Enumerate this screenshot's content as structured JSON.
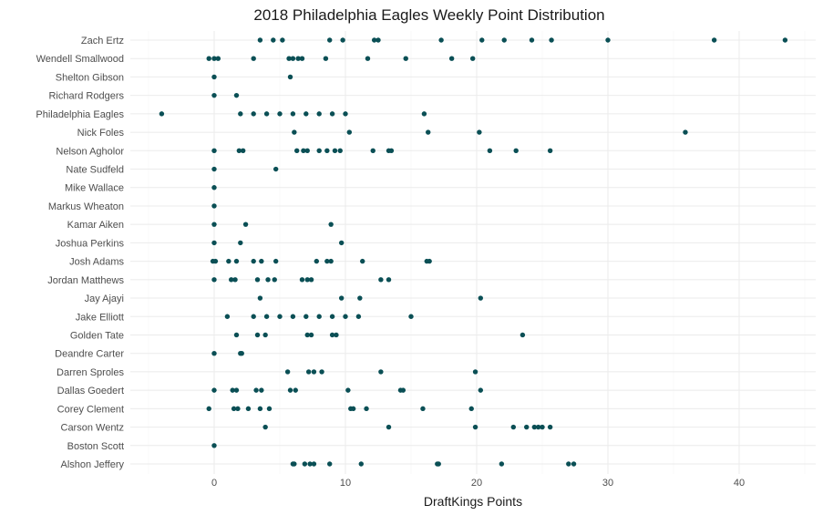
{
  "chart_data": {
    "type": "scatter",
    "title": "2018 Philadelphia Eagles Weekly Point Distribution",
    "xlabel": "DraftKings Points",
    "ylabel": "",
    "xlim": [
      -5,
      45
    ],
    "xticks": [
      0,
      10,
      20,
      30,
      40
    ],
    "grid": true,
    "legend": "none",
    "point_color": "#0a4f55",
    "categories": [
      "Zach Ertz",
      "Wendell Smallwood",
      "Shelton Gibson",
      "Richard Rodgers",
      "Philadelphia Eagles",
      "Nick Foles",
      "Nelson Agholor",
      "Nate Sudfeld",
      "Mike Wallace",
      "Markus Wheaton",
      "Kamar Aiken",
      "Joshua Perkins",
      "Josh Adams",
      "Jordan Matthews",
      "Jay Ajayi",
      "Jake Elliott",
      "Golden Tate",
      "Deandre Carter",
      "Darren Sproles",
      "Dallas Goedert",
      "Corey Clement",
      "Carson Wentz",
      "Boston Scott",
      "Alshon Jeffery"
    ],
    "points": {
      "Zach Ertz": [
        3.5,
        4.5,
        5.2,
        8.8,
        9.8,
        12.2,
        12.5,
        17.3,
        20.4,
        22.1,
        24.2,
        25.7,
        30.0,
        38.1,
        43.5
      ],
      "Wendell Smallwood": [
        -0.4,
        0.0,
        0.3,
        3.0,
        5.7,
        6.0,
        6.4,
        6.7,
        8.5,
        11.7,
        14.6,
        18.1,
        19.7
      ],
      "Shelton Gibson": [
        0.0,
        5.8
      ],
      "Richard Rodgers": [
        0.0,
        1.7
      ],
      "Philadelphia Eagles": [
        -4.0,
        2.0,
        3.0,
        4.0,
        5.0,
        6.0,
        7.0,
        8.0,
        9.0,
        10.0,
        16.0
      ],
      "Nick Foles": [
        6.1,
        10.3,
        16.3,
        20.2,
        35.9
      ],
      "Nelson Agholor": [
        0.0,
        1.9,
        2.2,
        6.3,
        6.8,
        7.1,
        8.0,
        8.6,
        9.2,
        9.6,
        12.1,
        13.3,
        13.5,
        21.0,
        23.0,
        25.6
      ],
      "Nate Sudfeld": [
        0.0,
        4.7
      ],
      "Mike Wallace": [
        0.0
      ],
      "Markus Wheaton": [
        0.0
      ],
      "Kamar Aiken": [
        0.0,
        2.4,
        8.9
      ],
      "Joshua Perkins": [
        0.0,
        2.0,
        9.7
      ],
      "Josh Adams": [
        -0.1,
        0.1,
        1.1,
        1.7,
        3.0,
        3.6,
        4.7,
        7.8,
        8.6,
        8.9,
        11.3,
        16.2,
        16.4
      ],
      "Jordan Matthews": [
        0.0,
        1.3,
        1.6,
        3.3,
        4.1,
        4.6,
        6.7,
        7.1,
        7.4,
        12.7,
        13.3
      ],
      "Jay Ajayi": [
        3.5,
        9.7,
        11.1,
        20.3
      ],
      "Jake Elliott": [
        1.0,
        3.0,
        4.0,
        5.0,
        6.0,
        7.0,
        8.0,
        9.0,
        10.0,
        11.0,
        15.0
      ],
      "Golden Tate": [
        1.7,
        3.3,
        3.9,
        7.1,
        7.4,
        9.0,
        9.3,
        23.5
      ],
      "Deandre Carter": [
        0.0,
        2.0,
        2.1
      ],
      "Darren Sproles": [
        5.6,
        7.2,
        7.6,
        8.2,
        12.7,
        19.9
      ],
      "Dallas Goedert": [
        0.0,
        1.4,
        1.7,
        3.2,
        3.6,
        5.8,
        6.2,
        10.2,
        14.2,
        14.4,
        20.3
      ],
      "Corey Clement": [
        -0.4,
        1.5,
        1.8,
        2.6,
        3.5,
        4.2,
        10.4,
        10.6,
        11.6,
        15.9,
        19.6
      ],
      "Carson Wentz": [
        3.9,
        13.3,
        19.9,
        22.8,
        23.8,
        24.4,
        24.7,
        25.0,
        25.6
      ],
      "Boston Scott": [
        0.0
      ],
      "Alshon Jeffery": [
        6.0,
        6.1,
        6.9,
        7.3,
        7.6,
        8.8,
        11.2,
        17.0,
        17.1,
        21.9,
        27.0,
        27.4
      ]
    }
  }
}
